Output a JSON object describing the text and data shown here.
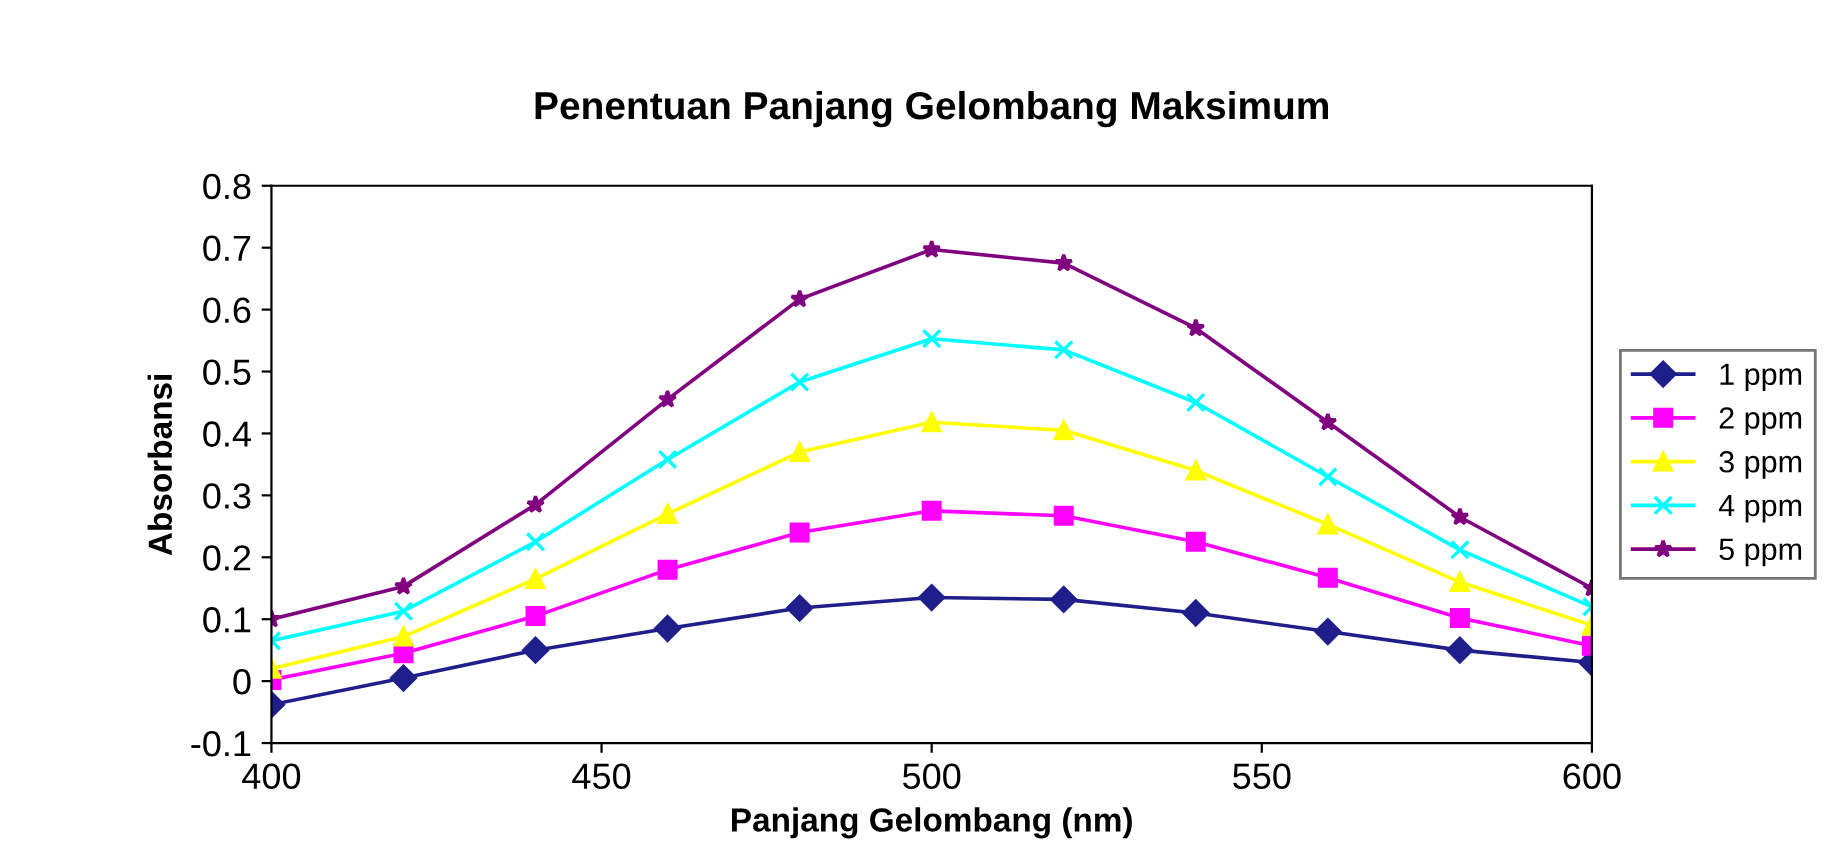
{
  "chart_data": {
    "type": "line",
    "title": "Penentuan Panjang Gelombang Maksimum",
    "xlabel": "Panjang Gelombang (nm)",
    "ylabel": "Absorbansi",
    "x": [
      400,
      420,
      440,
      460,
      480,
      500,
      520,
      540,
      560,
      580,
      600
    ],
    "series": [
      {
        "name": "1 ppm",
        "color": "#1f1f8c",
        "marker": "diamond",
        "values": [
          -0.038,
          0.005,
          0.05,
          0.085,
          0.118,
          0.135,
          0.132,
          0.11,
          0.08,
          0.05,
          0.03
        ]
      },
      {
        "name": "2 ppm",
        "color": "#ff00ff",
        "marker": "square",
        "values": [
          0.002,
          0.045,
          0.105,
          0.18,
          0.24,
          0.275,
          0.267,
          0.225,
          0.167,
          0.102,
          0.057
        ]
      },
      {
        "name": "3 ppm",
        "color": "#ffff00",
        "marker": "triangle",
        "values": [
          0.02,
          0.072,
          0.165,
          0.27,
          0.37,
          0.418,
          0.405,
          0.34,
          0.253,
          0.16,
          0.09
        ]
      },
      {
        "name": "4 ppm",
        "color": "#00ffff",
        "marker": "cross",
        "values": [
          0.065,
          0.113,
          0.225,
          0.358,
          0.483,
          0.553,
          0.535,
          0.45,
          0.33,
          0.212,
          0.12
        ]
      },
      {
        "name": "5 ppm",
        "color": "#800080",
        "marker": "star",
        "values": [
          0.1,
          0.153,
          0.285,
          0.455,
          0.617,
          0.697,
          0.675,
          0.57,
          0.418,
          0.265,
          0.15
        ]
      }
    ],
    "xlim": [
      400,
      600
    ],
    "xticks": [
      400,
      450,
      500,
      550,
      600
    ],
    "ylim": [
      -0.1,
      0.8
    ],
    "yticks": [
      -0.1,
      0,
      0.1,
      0.2,
      0.3,
      0.4,
      0.5,
      0.6,
      0.7,
      0.8
    ],
    "grid": false,
    "legend": "right",
    "line_style": "solid"
  }
}
